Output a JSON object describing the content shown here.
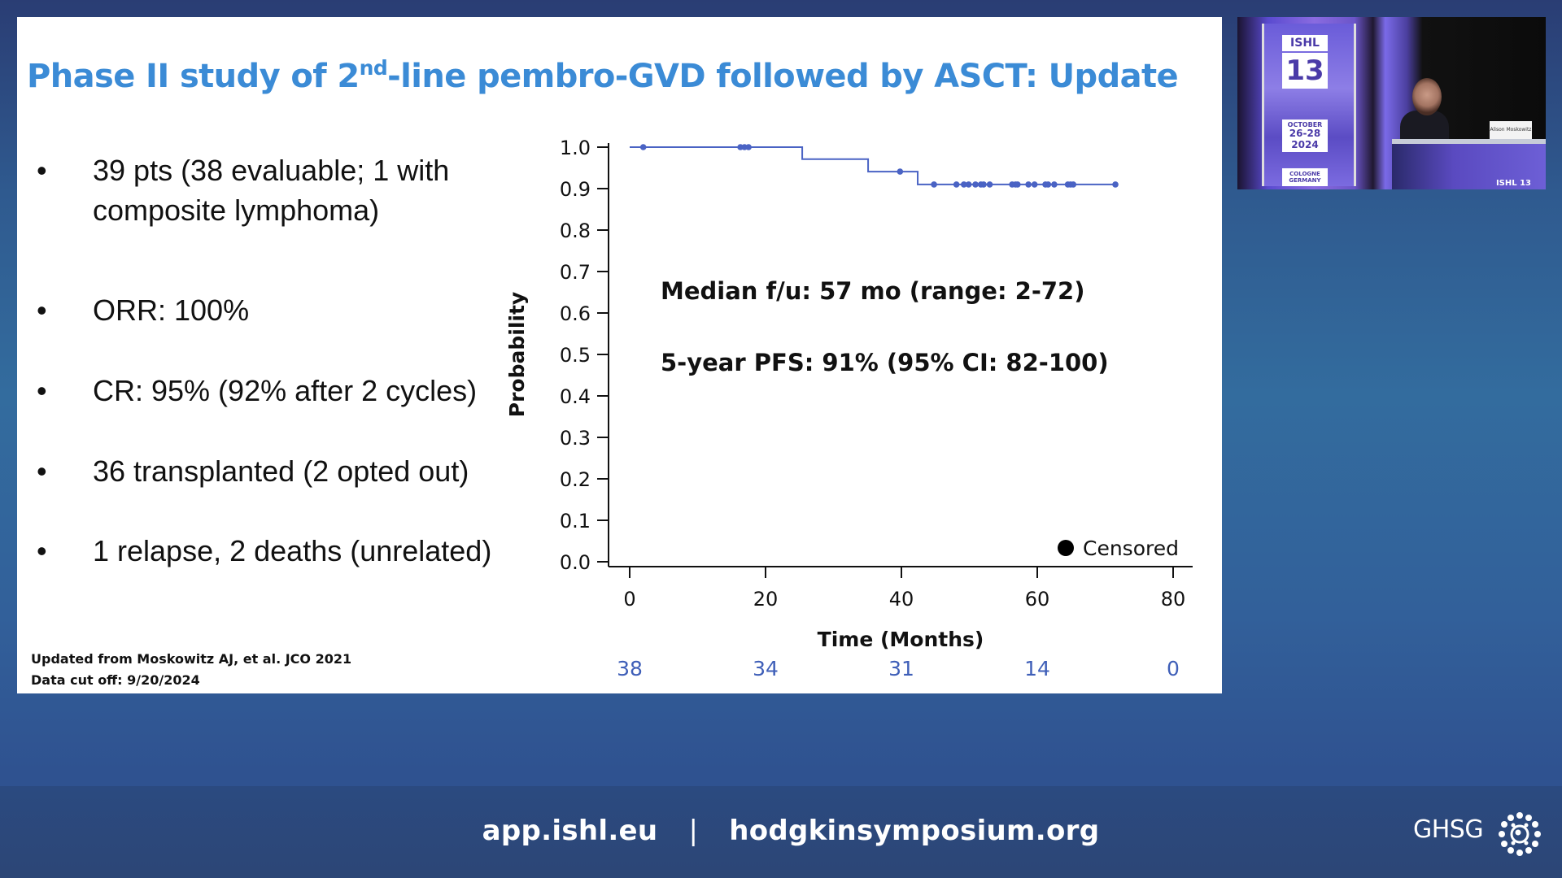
{
  "slide": {
    "title_pre": "Phase II study of 2",
    "title_sup": "nd",
    "title_post": "-line pembro-GVD followed by ASCT: Update",
    "bullets": [
      {
        "marker": "•",
        "text": "39 pts (38 evaluable; 1 with composite lymphoma)"
      },
      {
        "marker": "•",
        "text": "ORR: 100%"
      },
      {
        "marker": "•",
        "text": "CR: 95% (92% after 2 cycles)"
      },
      {
        "marker": "•",
        "text": "36 transplanted (2 opted out)"
      },
      {
        "marker": "•",
        "text": "1 relapse, 2 deaths (unrelated)"
      }
    ],
    "footnote": {
      "line1": "Updated from Moskowitz AJ, et al. JCO 2021",
      "line2": "Data cut off: 9/20/2024"
    }
  },
  "chart_data": {
    "type": "line",
    "subtype": "kaplan-meier-step",
    "title": "",
    "xlabel": "Time (Months)",
    "ylabel": "Probability",
    "xlim": [
      0,
      80
    ],
    "ylim": [
      0.0,
      1.0
    ],
    "x_ticks": [
      0,
      20,
      40,
      60,
      80
    ],
    "y_ticks": [
      "0.0",
      "0.1",
      "0.2",
      "0.3",
      "0.4",
      "0.5",
      "0.6",
      "0.7",
      "0.8",
      "0.9",
      "1.0"
    ],
    "grid": false,
    "series": [
      {
        "name": "PFS",
        "color": "#4a63c4",
        "steps": [
          {
            "x": 0,
            "y": 1.0
          },
          {
            "x": 25.4,
            "y": 0.971
          },
          {
            "x": 35.1,
            "y": 0.941
          },
          {
            "x": 42.4,
            "y": 0.91
          },
          {
            "x": 71.5,
            "y": 0.91
          }
        ],
        "censored": [
          {
            "x": 2.0,
            "y": 1.0
          },
          {
            "x": 16.3,
            "y": 1.0
          },
          {
            "x": 16.9,
            "y": 1.0
          },
          {
            "x": 17.5,
            "y": 1.0
          },
          {
            "x": 39.8,
            "y": 0.941
          },
          {
            "x": 44.8,
            "y": 0.91
          },
          {
            "x": 48.1,
            "y": 0.91
          },
          {
            "x": 49.2,
            "y": 0.91
          },
          {
            "x": 49.9,
            "y": 0.91
          },
          {
            "x": 50.9,
            "y": 0.91
          },
          {
            "x": 51.7,
            "y": 0.91
          },
          {
            "x": 52.1,
            "y": 0.91
          },
          {
            "x": 53.0,
            "y": 0.91
          },
          {
            "x": 56.3,
            "y": 0.91
          },
          {
            "x": 56.8,
            "y": 0.91
          },
          {
            "x": 57.1,
            "y": 0.91
          },
          {
            "x": 58.7,
            "y": 0.91
          },
          {
            "x": 59.6,
            "y": 0.91
          },
          {
            "x": 61.2,
            "y": 0.91
          },
          {
            "x": 61.6,
            "y": 0.91
          },
          {
            "x": 62.5,
            "y": 0.91
          },
          {
            "x": 64.5,
            "y": 0.91
          },
          {
            "x": 64.9,
            "y": 0.91
          },
          {
            "x": 65.3,
            "y": 0.91
          },
          {
            "x": 71.5,
            "y": 0.91
          }
        ]
      }
    ],
    "legend": {
      "position": "bottom-right",
      "entries": [
        {
          "marker": "filled-circle",
          "label": "Censored"
        }
      ]
    },
    "annotations": [
      "Median f/u: 57 mo (range: 2-72)",
      "5-year PFS: 91% (95% CI: 82-100)"
    ],
    "number_at_risk": {
      "x": [
        0,
        20,
        40,
        60,
        80
      ],
      "values": [
        "38",
        "34",
        "31",
        "14",
        "0"
      ],
      "color": "#3f5fb8"
    }
  },
  "video": {
    "badge_ishl": "ISHL",
    "badge_num": "13",
    "badge_date1": "OCTOBER",
    "badge_date2": "26-28",
    "badge_year": "2024",
    "badge_city1": "COLOGNE",
    "badge_city2": "GERMANY",
    "podium_tag": "ISHL 13",
    "nameplate": "Alison Moskowitz"
  },
  "footer": {
    "link1": "app.ishl.eu",
    "separator": "|",
    "link2": "hodgkinsymposium.org",
    "logo_text": "GHSG"
  }
}
